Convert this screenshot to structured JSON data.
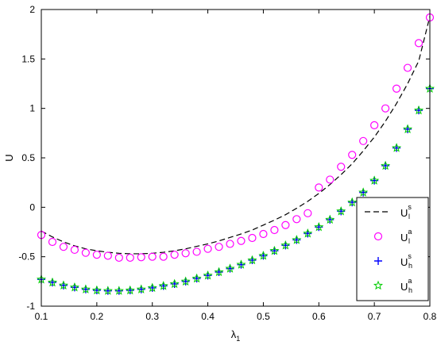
{
  "chart_data": {
    "type": "scatter",
    "xlabel": "λ",
    "xlabel_sub": "1",
    "ylabel": "U",
    "xlim": [
      0.1,
      0.8
    ],
    "ylim": [
      -1,
      2
    ],
    "xticks": [
      "0.1",
      "0.2",
      "0.3",
      "0.4",
      "0.5",
      "0.6",
      "0.7",
      "0.8"
    ],
    "yticks": [
      "-1",
      "-0.5",
      "0",
      "0.5",
      "1",
      "1.5",
      "2"
    ],
    "grid": false,
    "legend_placement": "bottom-right",
    "series": [
      {
        "name": "U_l^s",
        "legend_base": "U",
        "legend_sup": "s",
        "legend_sub": "l",
        "marker": "dashed-line",
        "color": "#000000",
        "x": [
          0.1,
          0.12,
          0.14,
          0.16,
          0.18,
          0.2,
          0.22,
          0.24,
          0.26,
          0.28,
          0.3,
          0.32,
          0.34,
          0.36,
          0.38,
          0.4,
          0.42,
          0.44,
          0.46,
          0.48,
          0.5,
          0.52,
          0.54,
          0.56,
          0.58,
          0.6,
          0.62,
          0.64,
          0.66,
          0.68,
          0.7,
          0.72,
          0.74,
          0.76,
          0.78,
          0.8
        ],
        "y": [
          -0.24,
          -0.3,
          -0.35,
          -0.39,
          -0.42,
          -0.44,
          -0.455,
          -0.465,
          -0.47,
          -0.47,
          -0.465,
          -0.455,
          -0.44,
          -0.42,
          -0.395,
          -0.37,
          -0.34,
          -0.305,
          -0.27,
          -0.23,
          -0.18,
          -0.13,
          -0.075,
          -0.01,
          0.06,
          0.14,
          0.23,
          0.33,
          0.44,
          0.57,
          0.71,
          0.87,
          1.05,
          1.25,
          1.48,
          1.93
        ]
      },
      {
        "name": "U_l^a",
        "legend_base": "U",
        "legend_sup": "a",
        "legend_sub": "l",
        "marker": "circle",
        "color": "#ff00ff",
        "x": [
          0.1,
          0.12,
          0.14,
          0.16,
          0.18,
          0.2,
          0.22,
          0.24,
          0.26,
          0.28,
          0.3,
          0.32,
          0.34,
          0.36,
          0.38,
          0.4,
          0.42,
          0.44,
          0.46,
          0.48,
          0.5,
          0.52,
          0.54,
          0.56,
          0.58,
          0.6,
          0.62,
          0.64,
          0.66,
          0.68,
          0.7,
          0.72,
          0.74,
          0.76,
          0.78,
          0.8
        ],
        "y": [
          -0.28,
          -0.35,
          -0.4,
          -0.43,
          -0.46,
          -0.48,
          -0.49,
          -0.51,
          -0.51,
          -0.505,
          -0.5,
          -0.5,
          -0.48,
          -0.465,
          -0.45,
          -0.42,
          -0.4,
          -0.37,
          -0.34,
          -0.31,
          -0.27,
          -0.23,
          -0.18,
          -0.12,
          -0.06,
          0.2,
          0.28,
          0.41,
          0.53,
          0.67,
          0.83,
          1.0,
          1.2,
          1.41,
          1.66,
          1.92
        ]
      },
      {
        "name": "U_h^s",
        "legend_base": "U",
        "legend_sup": "s",
        "legend_sub": "h",
        "marker": "plus",
        "color": "#0000ff",
        "x": [
          0.1,
          0.12,
          0.14,
          0.16,
          0.18,
          0.2,
          0.22,
          0.24,
          0.26,
          0.28,
          0.3,
          0.32,
          0.34,
          0.36,
          0.38,
          0.4,
          0.42,
          0.44,
          0.46,
          0.48,
          0.5,
          0.52,
          0.54,
          0.56,
          0.58,
          0.6,
          0.62,
          0.64,
          0.66,
          0.68,
          0.7,
          0.72,
          0.74,
          0.76,
          0.78,
          0.8
        ],
        "y": [
          -0.73,
          -0.76,
          -0.79,
          -0.81,
          -0.83,
          -0.84,
          -0.845,
          -0.845,
          -0.84,
          -0.83,
          -0.815,
          -0.795,
          -0.775,
          -0.75,
          -0.72,
          -0.69,
          -0.655,
          -0.62,
          -0.58,
          -0.535,
          -0.49,
          -0.44,
          -0.385,
          -0.33,
          -0.265,
          -0.2,
          -0.125,
          -0.04,
          0.05,
          0.15,
          0.27,
          0.42,
          0.6,
          0.79,
          0.98,
          1.2
        ]
      },
      {
        "name": "U_h^a",
        "legend_base": "U",
        "legend_sup": "a",
        "legend_sub": "h",
        "marker": "star",
        "color": "#00cc00",
        "x": [
          0.1,
          0.12,
          0.14,
          0.16,
          0.18,
          0.2,
          0.22,
          0.24,
          0.26,
          0.28,
          0.3,
          0.32,
          0.34,
          0.36,
          0.38,
          0.4,
          0.42,
          0.44,
          0.46,
          0.48,
          0.5,
          0.52,
          0.54,
          0.56,
          0.58,
          0.6,
          0.62,
          0.64,
          0.66,
          0.68,
          0.7,
          0.72,
          0.74,
          0.76,
          0.78,
          0.8
        ],
        "y": [
          -0.73,
          -0.76,
          -0.79,
          -0.81,
          -0.83,
          -0.84,
          -0.845,
          -0.845,
          -0.84,
          -0.83,
          -0.815,
          -0.795,
          -0.775,
          -0.75,
          -0.72,
          -0.69,
          -0.655,
          -0.62,
          -0.58,
          -0.535,
          -0.49,
          -0.44,
          -0.385,
          -0.33,
          -0.265,
          -0.2,
          -0.125,
          -0.04,
          0.05,
          0.15,
          0.27,
          0.42,
          0.6,
          0.79,
          0.98,
          1.2
        ]
      }
    ]
  }
}
